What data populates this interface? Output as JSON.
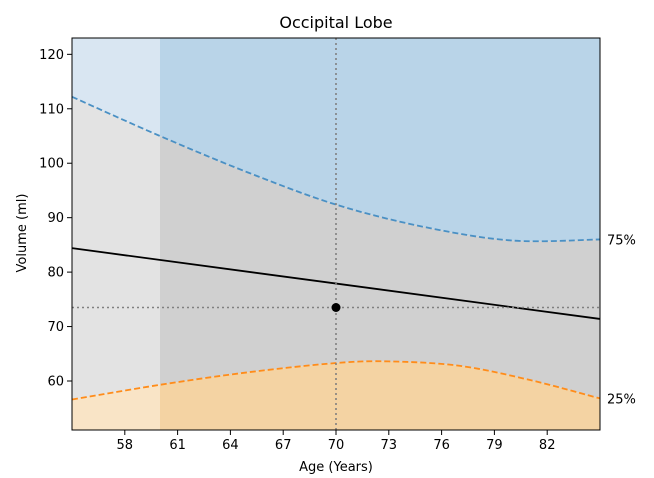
{
  "chart_data": {
    "type": "line",
    "title": "Occipital Lobe",
    "xlabel": "Age (Years)",
    "ylabel": "Volume (ml)",
    "xlim": [
      55,
      85
    ],
    "ylim": [
      51,
      123
    ],
    "xticks": [
      58,
      61,
      64,
      67,
      70,
      73,
      76,
      79,
      82
    ],
    "yticks": [
      60,
      70,
      80,
      90,
      100,
      110,
      120
    ],
    "shaded_start_age": 60,
    "grid": false,
    "series": [
      {
        "key": "upper",
        "x": [
          55,
          60,
          65,
          70,
          75,
          80,
          85
        ],
        "y": [
          112.2,
          105.0,
          98.3,
          92.4,
          88.3,
          85.8,
          86.0
        ],
        "style": "dashed",
        "color": "#4a90c4"
      },
      {
        "key": "median",
        "x": [
          55,
          85
        ],
        "y": [
          84.4,
          71.4
        ],
        "style": "solid",
        "color": "#000000"
      },
      {
        "key": "lower",
        "x": [
          55,
          60,
          65,
          70,
          73,
          77,
          81,
          85
        ],
        "y": [
          56.6,
          59.3,
          61.6,
          63.3,
          63.6,
          62.8,
          60.2,
          56.8
        ],
        "style": "dashed",
        "color": "#ff8c1a"
      }
    ],
    "point": {
      "x": 70,
      "y": 73.5
    },
    "crosshair": {
      "x": 70,
      "y": 73.5
    },
    "percentile_labels": [
      {
        "text": "75%",
        "y": 86.0
      },
      {
        "text": "25%",
        "y": 56.8
      }
    ],
    "colors": {
      "upper_fill": "#b9d4e8",
      "upper_fill_light": "#d9e6f2",
      "middle_fill": "#d0d0d0",
      "middle_fill_light": "#e3e3e3",
      "lower_fill": "#f4d3a3",
      "lower_fill_light": "#f9e4c6",
      "upper_line": "#4a90c4",
      "lower_line": "#ff8c1a"
    }
  }
}
